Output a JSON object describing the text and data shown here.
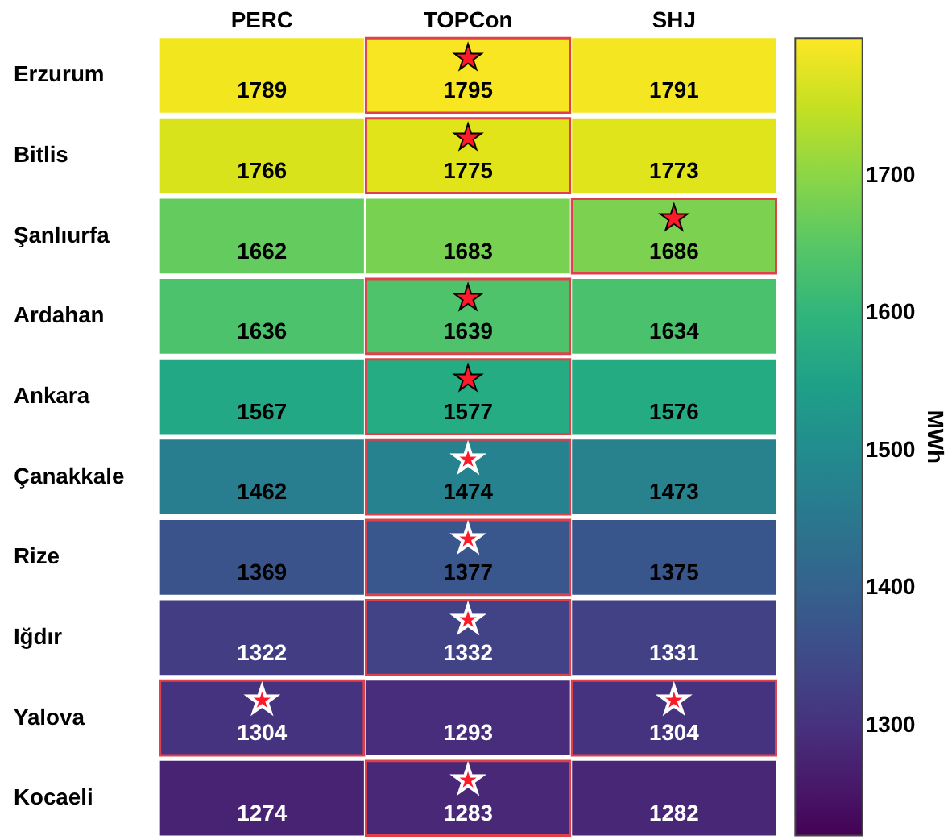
{
  "chart_data": {
    "type": "heatmap",
    "categories": [
      "PERC",
      "TOPCon",
      "SHJ"
    ],
    "y_categories": [
      "Erzurum",
      "Bitlis",
      "Şanlıurfa",
      "Ardahan",
      "Ankara",
      "Çanakkale",
      "Rize",
      "Iğdır",
      "Yalova",
      "Kocaeli"
    ],
    "cells": [
      [
        1789,
        1795,
        1791
      ],
      [
        1766,
        1775,
        1773
      ],
      [
        1662,
        1683,
        1686
      ],
      [
        1636,
        1639,
        1634
      ],
      [
        1567,
        1577,
        1576
      ],
      [
        1462,
        1474,
        1473
      ],
      [
        1369,
        1377,
        1375
      ],
      [
        1322,
        1332,
        1331
      ],
      [
        1304,
        1293,
        1304
      ],
      [
        1274,
        1283,
        1282
      ]
    ],
    "cell_labels": [
      [
        "1789",
        "★\n1795",
        "1791"
      ],
      [
        "1766",
        "★\n1775",
        "1773"
      ],
      [
        "1662",
        "1683",
        "★\n1686"
      ],
      [
        "1636",
        "★\n1639",
        "1634"
      ],
      [
        "1567",
        "★\n1577",
        "1576"
      ],
      [
        "1462",
        "★\n1474",
        "1473"
      ],
      [
        "1369",
        "★\n1377",
        "1375"
      ],
      [
        "1322",
        "★\n1332",
        "1331"
      ],
      [
        "★\n1304",
        "1293",
        "★\n1304"
      ],
      [
        "1274",
        "★\n1283",
        "1282"
      ]
    ],
    "clabel": "MWh",
    "clim": [
      1220,
      1800
    ],
    "cticks": [
      1300,
      1400,
      1500,
      1600,
      1700
    ]
  }
}
